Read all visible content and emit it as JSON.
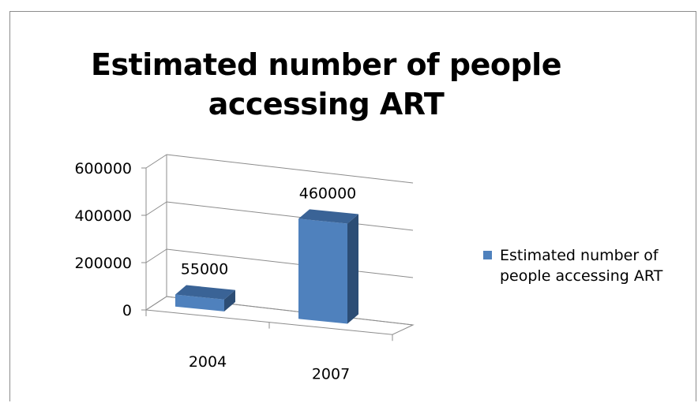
{
  "chart_data": {
    "type": "bar",
    "title": "Estimated number of people accessing ART",
    "categories": [
      "2004",
      "2007"
    ],
    "series": [
      {
        "name": "Estimated number of people accessing ART",
        "values": [
          55000,
          460000
        ]
      }
    ],
    "data_labels": [
      "55000",
      "460000"
    ],
    "yticks": [
      0,
      200000,
      400000,
      600000
    ],
    "ytick_labels": [
      "0",
      "200000",
      "400000",
      "600000"
    ],
    "ylim": [
      0,
      600000
    ],
    "xlabel": "",
    "ylabel": "",
    "grid": true,
    "legend_position": "right",
    "style": "3d-column",
    "colors": {
      "bar_front": "#4f81bd",
      "bar_side": "#2c4d75",
      "bar_top": "#3a6396",
      "grid": "#8c8c8c"
    }
  }
}
